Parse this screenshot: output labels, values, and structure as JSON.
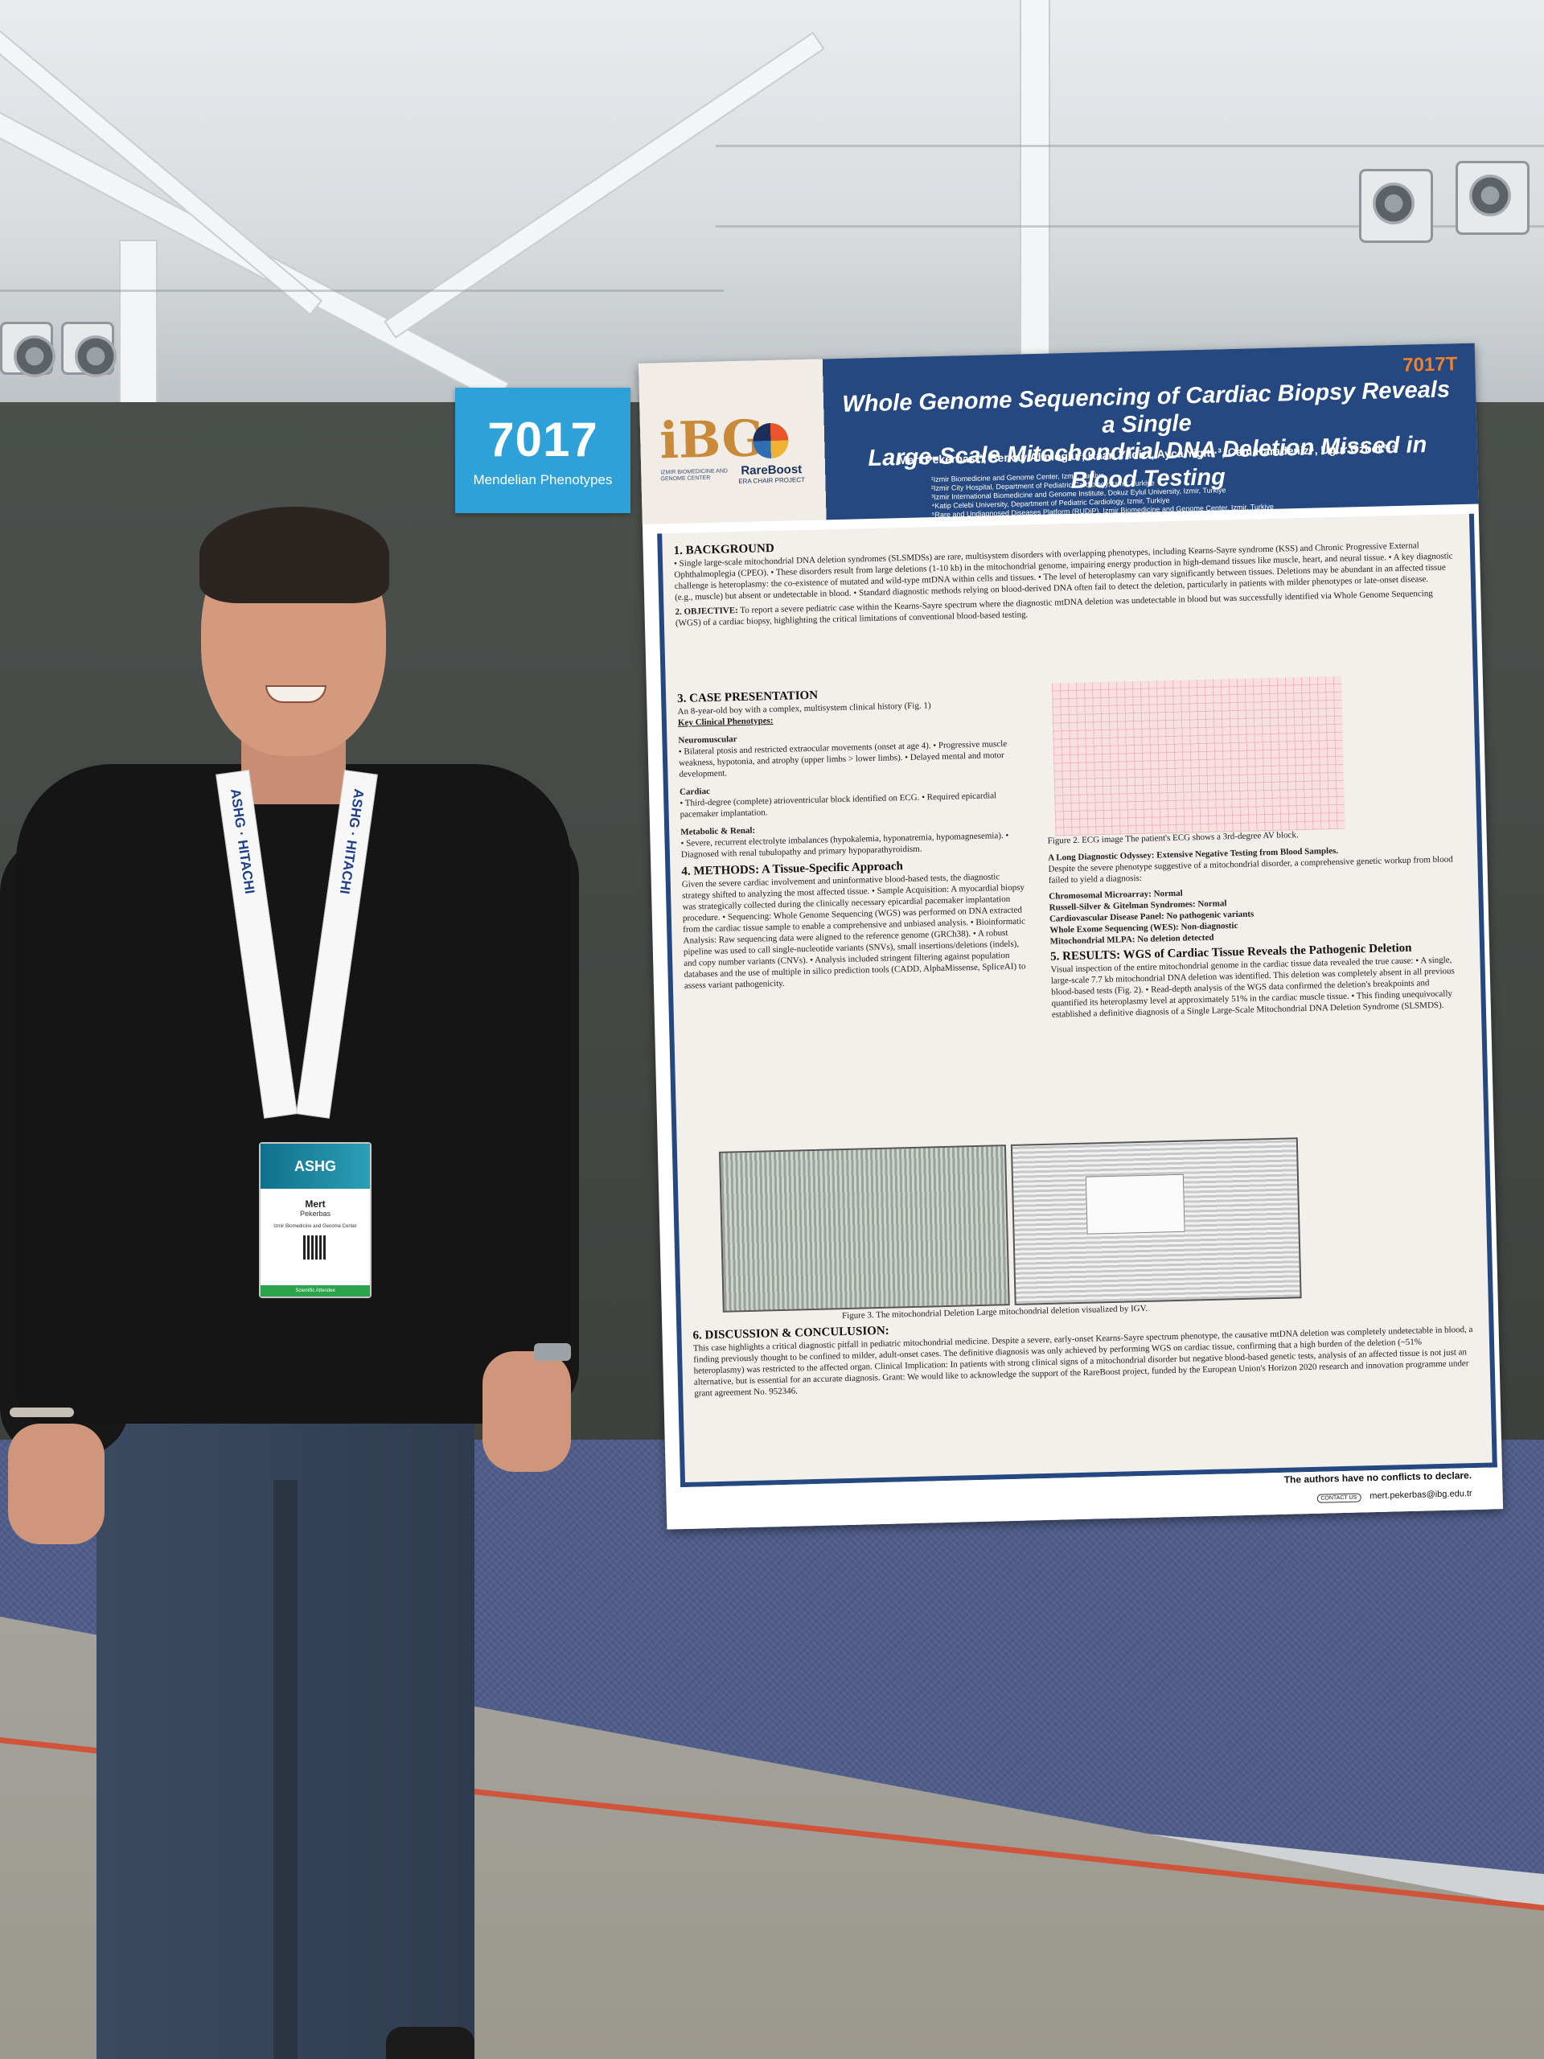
{
  "booth": {
    "number": "7017",
    "topic": "Mendelian Phenotypes"
  },
  "poster": {
    "code": "7017T",
    "title_line1": "Whole Genome Sequencing of Cardiac Biopsy Reveals a Single",
    "title_line2": "Large-Scale Mitochondrial DNA Deletion Missed in Blood Testing",
    "authors": "Mert Pekerbas¹*, Berkay Alimoglu², Kaan Yildiz², Ayca Yigit¹·³, Cem Karadeniz⁴, Ugur Ozbek¹·⁵",
    "affiliations": [
      "¹Izmir Biomedicine and Genome Center, Izmir, Turkiye",
      "²Izmir City Hospital, Department of Pediatric Cardiology, Izmir, Turkiye",
      "³Izmir International Biomedicine and Genome Institute, Dokuz Eylul University, Izmir, Turkiye",
      "⁴Katip Celebi University, Department of Pediatric Cardiology, Izmir, Turkiye",
      "⁵Rare and Undiagnosed Diseases Platform (RUDiP), Izmir Biomedicine and Genome Center, Izmir, Turkiye"
    ],
    "logo_ibg": "iBG",
    "logo_ibg_org": "IZMIR BIOMEDICINE AND GENOME CENTER",
    "logo_rb_name": "RareBoost",
    "logo_rb_sub": "ERA CHAIR PROJECT",
    "background_title": "1. BACKGROUND",
    "background_text": "• Single large-scale mitochondrial DNA deletion syndromes (SLSMDSs) are rare, multisystem disorders with overlapping phenotypes, including Kearns-Sayre syndrome (KSS) and Chronic Progressive External Ophthalmoplegia (CPEO). • These disorders result from large deletions (1-10 kb) in the mitochondrial genome, impairing energy production in high-demand tissues like muscle, heart, and neural tissue. • A key diagnostic challenge is heteroplasmy: the co-existence of mutated and wild-type mtDNA within cells and tissues. • The level of heteroplasmy can vary significantly between tissues. Deletions may be abundant in an affected tissue (e.g., muscle) but absent or undetectable in blood. • Standard diagnostic methods relying on blood-derived DNA often fail to detect the deletion, particularly in patients with milder phenotypes or late-onset disease.",
    "objective_title": "2. OBJECTIVE:",
    "objective_text": "To report a severe pediatric case within the Kearns-Sayre spectrum where the diagnostic mtDNA deletion was undetectable in blood but was successfully identified via Whole Genome Sequencing (WGS) of a cardiac biopsy, highlighting the critical limitations of conventional blood-based testing.",
    "case_title": "3. CASE PRESENTATION",
    "case_intro": "An 8-year-old boy with a complex, multisystem clinical history (Fig. 1)",
    "case_key": "Key Clinical Phenotypes:",
    "neuro_title": "Neuromuscular",
    "neuro_text": "• Bilateral ptosis and restricted extraocular movements (onset at age 4). • Progressive muscle weakness, hypotonia, and atrophy (upper limbs > lower limbs). • Delayed mental and motor development.",
    "cardiac_title": "Cardiac",
    "cardiac_text": "• Third-degree (complete) atrioventricular block identified on ECG. • Required epicardial pacemaker implantation.",
    "metabolic_title": "Metabolic & Renal:",
    "metabolic_text": "• Severe, recurrent electrolyte imbalances (hypokalemia, hyponatremia, hypomagnesemia). • Diagnosed with renal tubulopathy and primary hypoparathyroidism.",
    "methods_title": "4. METHODS: A Tissue-Specific Approach",
    "methods_text": "Given the severe cardiac involvement and uninformative blood-based tests, the diagnostic strategy shifted to analyzing the most affected tissue. • Sample Acquisition: A myocardial biopsy was strategically collected during the clinically necessary epicardial pacemaker implantation procedure. • Sequencing: Whole Genome Sequencing (WGS) was performed on DNA extracted from the cardiac tissue sample to enable a comprehensive and unbiased analysis. • Bioinformatic Analysis: Raw sequencing data were aligned to the reference genome (GRCh38). • A robust pipeline was used to call single-nucleotide variants (SNVs), small insertions/deletions (indels), and copy number variants (CNVs). • Analysis included stringent filtering against population databases and the use of multiple in silico prediction tools (CADD, AlphaMissense, SpliceAI) to assess variant pathogenicity.",
    "fig2_caption": "Figure 2. ECG image The patient's ECG shows a 3rd-degree AV block.",
    "odyssey_title": "A Long Diagnostic Odyssey: Extensive Negative Testing from Blood Samples.",
    "odyssey_text": "Despite the severe phenotype suggestive of a mitochondrial disorder, a comprehensive genetic workup from blood failed to yield a diagnosis:",
    "tests": [
      "Chromosomal Microarray: Normal",
      "Russell-Silver & Gitelman Syndromes: Normal",
      "Cardiovascular Disease Panel: No pathogenic variants",
      "Whole Exome Sequencing (WES): Non-diagnostic",
      "Mitochondrial MLPA: No deletion detected"
    ],
    "results_title": "5. RESULTS: WGS of Cardiac Tissue Reveals the Pathogenic Deletion",
    "results_text": "Visual inspection of the entire mitochondrial genome in the cardiac tissue data revealed the true cause: • A single, large-scale 7.7 kb mitochondrial DNA deletion was identified. This deletion was completely absent in all previous blood-based tests (Fig. 2). • Read-depth analysis of the WGS data confirmed the deletion's breakpoints and quantified its heteroplasmy level at approximately 51% in the cardiac muscle tissue. • This finding unequivocally established a definitive diagnosis of a Single Large-Scale Mitochondrial DNA Deletion Syndrome (SLSMDS).",
    "fig3_caption": "Figure 3. The mitochondrial Deletion Large mitochondrial deletion visualized by IGV.",
    "discussion_title": "6. DISCUSSION & CONCULUSION:",
    "discussion_text": "This case highlights a critical diagnostic pitfall in pediatric mitochondrial medicine. Despite a severe, early-onset Kearns-Sayre spectrum phenotype, the causative mtDNA deletion was completely undetectable in blood, a finding previously thought to be confined to milder, adult-onset cases. The definitive diagnosis was only achieved by performing WGS on cardiac tissue, confirming that a high burden of the deletion (~51% heteroplasmy) was restricted to the affected organ. Clinical Implication: In patients with strong clinical signs of a mitochondrial disorder but negative blood-based genetic tests, analysis of an affected tissue is not just an alternative, but is essential for an accurate diagnosis. Grant: We would like to acknowledge the support of the RareBoost project, funded by the European Union's Horizon 2020 research and innovation programme under grant agreement No. 952346.",
    "conflict": "The authors have no conflicts to declare.",
    "contact_chip": "CONTACT US",
    "email": "mert.pekerbas@ibg.edu.tr"
  },
  "person_badge": {
    "event": "ASHG",
    "first_name": "Mert",
    "last_name": "Pekerbas",
    "org": "Izmir Biomedicine and Genome Center",
    "footer": "Scientific Attendee",
    "lanyard_left": "ASHG · HITACHI",
    "lanyard_right": "ASHG · HITACHI"
  },
  "colors": {
    "booth_sign": "#2ea2d8",
    "poster_header": "#24487f",
    "poster_code": "#f0802a",
    "carpet": "#4f5d8a",
    "floor_stripe": "#d0543a"
  }
}
